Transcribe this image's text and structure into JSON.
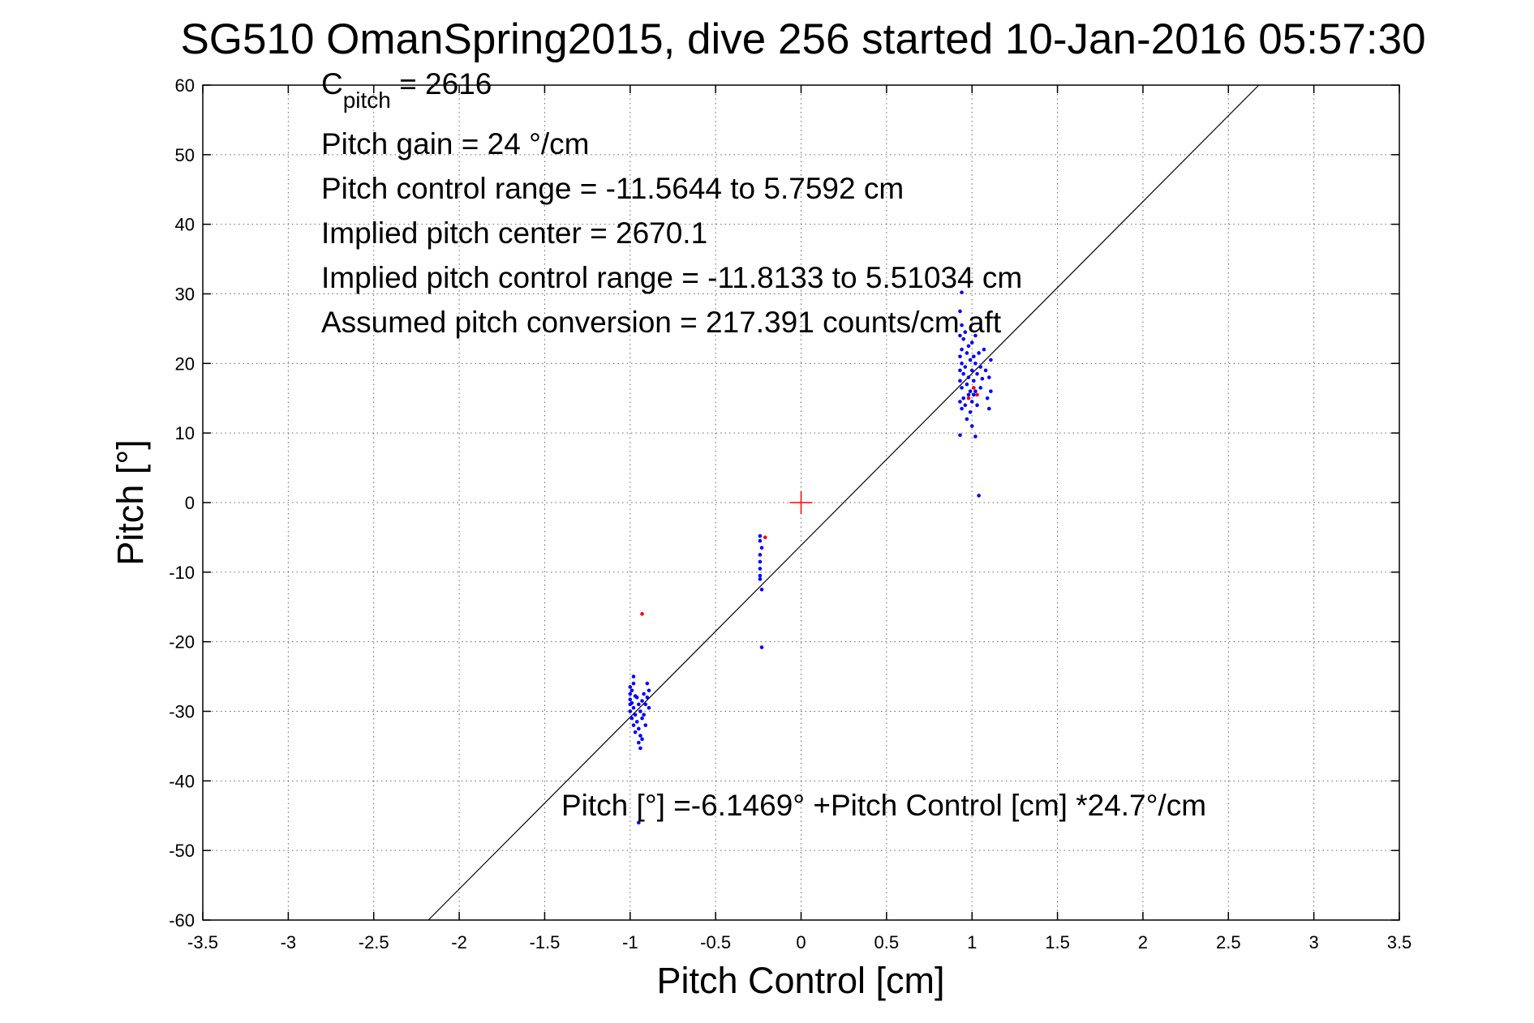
{
  "chart_data": {
    "type": "scatter",
    "title": "SG510 OmanSpring2015, dive 256 started 10-Jan-2016 05:57:30",
    "xlabel": "Pitch Control [cm]",
    "ylabel": "Pitch [°]",
    "xlim": [
      -3.5,
      3.5
    ],
    "ylim": [
      -60,
      60
    ],
    "xticks": [
      -3.5,
      -3,
      -2.5,
      -2,
      -1.5,
      -1,
      -0.5,
      0,
      0.5,
      1,
      1.5,
      2,
      2.5,
      3,
      3.5
    ],
    "yticks": [
      -60,
      -50,
      -40,
      -30,
      -20,
      -10,
      0,
      10,
      20,
      30,
      40,
      50,
      60
    ],
    "xtick_labels": [
      "-3.5",
      "-3",
      "-2.5",
      "-2",
      "-1.5",
      "-1",
      "-0.5",
      "0",
      "0.5",
      "1",
      "1.5",
      "2",
      "2.5",
      "3",
      "3.5"
    ],
    "ytick_labels": [
      "-60",
      "-50",
      "-40",
      "-30",
      "-20",
      "-10",
      "0",
      "10",
      "20",
      "30",
      "40",
      "50",
      "60"
    ],
    "grid": true,
    "colors": {
      "good": "#0000ff",
      "flagged": "#ff0000",
      "fit": "#000000",
      "center": "#ff0000"
    },
    "annotations": {
      "c_pitch_main": "C",
      "c_pitch_sub": "pitch",
      "c_pitch_value": " = 2616",
      "lines": [
        "Pitch gain = 24 °/cm",
        "Pitch control range = -11.5644 to 5.7592 cm",
        "Implied pitch center = 2670.1",
        "Implied pitch control range = -11.8133 to 5.51034 cm",
        "Assumed pitch conversion = 217.391 counts/cm aft"
      ],
      "fit_equation": "Pitch [°] =-6.1469° +Pitch Control [cm] *24.7°/cm"
    },
    "fit": {
      "intercept": -6.1469,
      "slope": 24.7
    },
    "center_marker": {
      "x": 0,
      "y": 0
    },
    "series": [
      {
        "type": "scatter",
        "color": "#0000ff",
        "points": [
          [
            -1.0,
            -26.5
          ],
          [
            -1.0,
            -27.5
          ],
          [
            -1.0,
            -28.3
          ],
          [
            -1.0,
            -29.0
          ],
          [
            -1.0,
            -30.0
          ],
          [
            -0.99,
            -27.0
          ],
          [
            -0.99,
            -28.8
          ],
          [
            -0.99,
            -31.0
          ],
          [
            -0.98,
            -25.0
          ],
          [
            -0.98,
            -26.0
          ],
          [
            -0.98,
            -29.5
          ],
          [
            -0.98,
            -32.0
          ],
          [
            -0.97,
            -27.8
          ],
          [
            -0.97,
            -30.5
          ],
          [
            -0.97,
            -33.0
          ],
          [
            -0.96,
            -28.0
          ],
          [
            -0.96,
            -31.5
          ],
          [
            -0.95,
            -29.0
          ],
          [
            -0.95,
            -32.5
          ],
          [
            -0.95,
            -34.5
          ],
          [
            -0.94,
            -30.0
          ],
          [
            -0.94,
            -33.5
          ],
          [
            -0.94,
            -35.3
          ],
          [
            -0.93,
            -28.5
          ],
          [
            -0.93,
            -31.0
          ],
          [
            -0.93,
            -34.0
          ],
          [
            -0.92,
            -27.5
          ],
          [
            -0.92,
            -30.5
          ],
          [
            -0.91,
            -29.0
          ],
          [
            -0.91,
            -32.0
          ],
          [
            -0.9,
            -26.0
          ],
          [
            -0.9,
            -28.0
          ],
          [
            -0.89,
            -27.0
          ],
          [
            -0.89,
            -29.5
          ],
          [
            -0.95,
            -46.0
          ],
          [
            -0.24,
            -4.8
          ],
          [
            -0.24,
            -5.5
          ],
          [
            -0.24,
            -7.5
          ],
          [
            -0.24,
            -8.5
          ],
          [
            -0.24,
            -9.5
          ],
          [
            -0.24,
            -10.5
          ],
          [
            -0.24,
            -11.0
          ],
          [
            -0.23,
            -6.5
          ],
          [
            -0.23,
            -12.5
          ],
          [
            -0.23,
            -20.8
          ],
          [
            0.93,
            27.5
          ],
          [
            0.93,
            24.0
          ],
          [
            0.93,
            21.0
          ],
          [
            0.93,
            19.0
          ],
          [
            0.93,
            17.5
          ],
          [
            0.93,
            14.5
          ],
          [
            0.93,
            9.7
          ],
          [
            0.94,
            30.2
          ],
          [
            0.94,
            25.5
          ],
          [
            0.94,
            22.0
          ],
          [
            0.94,
            20.0
          ],
          [
            0.94,
            16.5
          ],
          [
            0.94,
            13.5
          ],
          [
            0.95,
            23.5
          ],
          [
            0.95,
            18.5
          ],
          [
            0.95,
            15.0
          ],
          [
            0.96,
            24.5
          ],
          [
            0.96,
            19.5
          ],
          [
            0.96,
            14.0
          ],
          [
            0.97,
            21.5
          ],
          [
            0.97,
            17.0
          ],
          [
            0.97,
            12.0
          ],
          [
            0.98,
            22.5
          ],
          [
            0.98,
            18.0
          ],
          [
            0.98,
            15.5
          ],
          [
            0.99,
            20.5
          ],
          [
            0.99,
            16.0
          ],
          [
            0.99,
            13.0
          ],
          [
            1.0,
            23.0
          ],
          [
            1.0,
            19.0
          ],
          [
            1.0,
            14.5
          ],
          [
            1.0,
            11.0
          ],
          [
            1.01,
            21.0
          ],
          [
            1.01,
            17.5
          ],
          [
            1.01,
            15.5
          ],
          [
            1.02,
            24.0
          ],
          [
            1.02,
            20.0
          ],
          [
            1.02,
            16.0
          ],
          [
            1.02,
            9.5
          ],
          [
            1.03,
            18.5
          ],
          [
            1.03,
            14.0
          ],
          [
            1.04,
            1.0
          ],
          [
            1.04,
            21.5
          ],
          [
            1.05,
            19.5
          ],
          [
            1.05,
            16.5
          ],
          [
            1.06,
            17.8
          ],
          [
            1.07,
            22.0
          ],
          [
            1.08,
            19.0
          ],
          [
            1.09,
            15.0
          ],
          [
            1.1,
            18.0
          ],
          [
            1.1,
            13.5
          ],
          [
            1.11,
            16.0
          ],
          [
            1.11,
            20.5
          ]
        ]
      },
      {
        "type": "scatter",
        "color": "#ff0000",
        "points": [
          [
            -0.93,
            -16.0
          ],
          [
            -0.21,
            -5.0
          ],
          [
            0.98,
            15.0
          ],
          [
            1.01,
            16.5
          ],
          [
            1.03,
            15.5
          ]
        ]
      }
    ]
  }
}
